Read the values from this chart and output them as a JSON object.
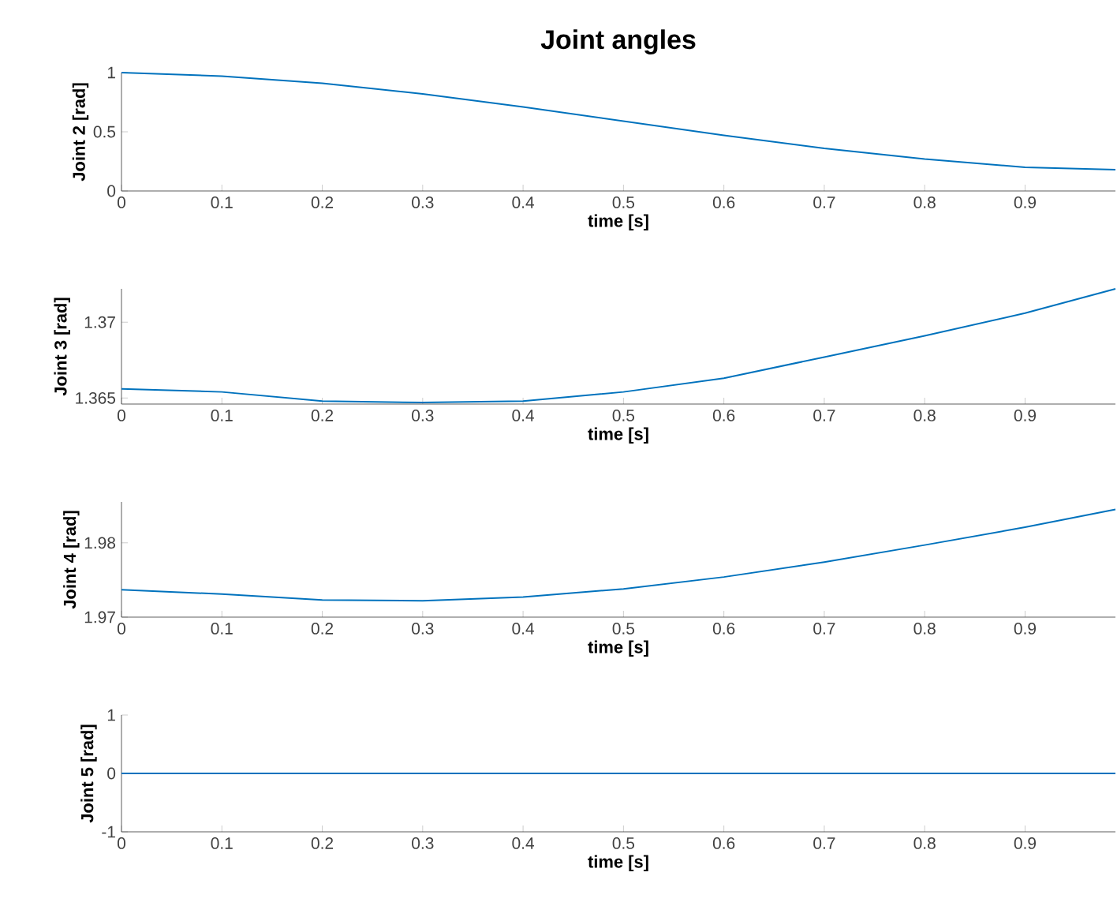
{
  "chart_data": [
    {
      "type": "line",
      "title": "Joint angles",
      "xlabel": "time [s]",
      "ylabel": "Joint 2 [rad]",
      "color": "#0072bd",
      "x": [
        0,
        0.1,
        0.2,
        0.3,
        0.4,
        0.5,
        0.6,
        0.7,
        0.8,
        0.9,
        0.99
      ],
      "values": [
        1,
        0.97,
        0.91,
        0.82,
        0.71,
        0.59,
        0.47,
        0.36,
        0.27,
        0.2,
        0.18
      ],
      "xlim": [
        0,
        0.99
      ],
      "ylim": [
        0,
        1
      ],
      "xticks": [
        0,
        0.1,
        0.2,
        0.3,
        0.4,
        0.5,
        0.6,
        0.7,
        0.8,
        0.9
      ],
      "yticks": [
        0,
        0.5,
        1
      ]
    },
    {
      "type": "line",
      "xlabel": "time [s]",
      "ylabel": "Joint 3 [rad]",
      "color": "#0072bd",
      "x": [
        0,
        0.1,
        0.2,
        0.3,
        0.4,
        0.5,
        0.6,
        0.7,
        0.8,
        0.9,
        0.99
      ],
      "values": [
        1.3656,
        1.3654,
        1.3648,
        1.3647,
        1.3648,
        1.3654,
        1.3663,
        1.3677,
        1.3691,
        1.3706,
        1.3722
      ],
      "xlim": [
        0,
        0.99
      ],
      "ylim": [
        1.3646,
        1.3722
      ],
      "xticks": [
        0,
        0.1,
        0.2,
        0.3,
        0.4,
        0.5,
        0.6,
        0.7,
        0.8,
        0.9
      ],
      "yticks": [
        1.365,
        1.37
      ]
    },
    {
      "type": "line",
      "xlabel": "time [s]",
      "ylabel": "Joint 4 [rad]",
      "color": "#0072bd",
      "x": [
        0,
        0.1,
        0.2,
        0.3,
        0.4,
        0.5,
        0.6,
        0.7,
        0.8,
        0.9,
        0.99
      ],
      "values": [
        1.9737,
        1.9731,
        1.9723,
        1.9722,
        1.9727,
        1.9738,
        1.9754,
        1.9774,
        1.9797,
        1.9821,
        1.9845
      ],
      "xlim": [
        0,
        0.99
      ],
      "ylim": [
        1.97,
        1.9855
      ],
      "xticks": [
        0,
        0.1,
        0.2,
        0.3,
        0.4,
        0.5,
        0.6,
        0.7,
        0.8,
        0.9
      ],
      "yticks": [
        1.97,
        1.98
      ]
    },
    {
      "type": "line",
      "xlabel": "time [s]",
      "ylabel": "Joint 5 [rad]",
      "color": "#0072bd",
      "x": [
        0,
        0.1,
        0.2,
        0.3,
        0.4,
        0.5,
        0.6,
        0.7,
        0.8,
        0.9,
        0.99
      ],
      "values": [
        0,
        0,
        0,
        0,
        0,
        0,
        0,
        0,
        0,
        0,
        0
      ],
      "xlim": [
        0,
        0.99
      ],
      "ylim": [
        -1,
        1
      ],
      "xticks": [
        0,
        0.1,
        0.2,
        0.3,
        0.4,
        0.5,
        0.6,
        0.7,
        0.8,
        0.9
      ],
      "yticks": [
        -1,
        0,
        1
      ]
    }
  ]
}
